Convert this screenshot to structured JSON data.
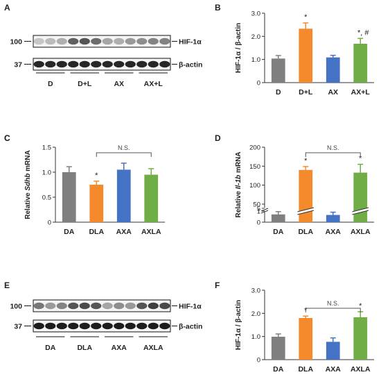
{
  "panels": {
    "A": {
      "label": "A",
      "blots": [
        {
          "name": "HIF-1α",
          "mw": "100"
        },
        {
          "name": "β-actin",
          "mw": "37"
        }
      ],
      "groups": [
        "D",
        "D+L",
        "AX",
        "AX+L"
      ]
    },
    "C": {
      "label": "C"
    },
    "E": {
      "label": "E",
      "blots": [
        {
          "name": "HIF-1α",
          "mw": "100"
        },
        {
          "name": "β-actin",
          "mw": "37"
        }
      ],
      "groups": [
        "DA",
        "DLA",
        "AXA",
        "AXLA"
      ]
    }
  },
  "chart_data": [
    {
      "panel": "B",
      "type": "bar",
      "categories": [
        "D",
        "D+L",
        "AX",
        "AX+L"
      ],
      "values": [
        1.04,
        2.33,
        1.09,
        1.68
      ],
      "errors": [
        0.13,
        0.25,
        0.09,
        0.23
      ],
      "colors": [
        "#7f7f7f",
        "#f58a2c",
        "#4472c4",
        "#70ad47"
      ],
      "annotations": [
        "",
        "*",
        "",
        "*, #"
      ],
      "ylabel": "HIF-1α / β-actin",
      "ylim": [
        0,
        3.0
      ],
      "yticks": [
        "0",
        "1.0",
        "2.0",
        "3.0"
      ]
    },
    {
      "panel": "D",
      "type": "bar",
      "categories": [
        "DA",
        "DLA",
        "AXA",
        "AXLA"
      ],
      "values": [
        0.7,
        140,
        0.65,
        133
      ],
      "errors": [
        0.25,
        9,
        0.25,
        22
      ],
      "colors": [
        "#7f7f7f",
        "#f58a2c",
        "#4472c4",
        "#70ad47"
      ],
      "annotations": [
        "",
        "*",
        "",
        "*"
      ],
      "comparison": {
        "from": "DLA",
        "to": "AXLA",
        "label": "N.S."
      },
      "ylabel_parts": [
        "Relative ",
        "Il-1b",
        " mRNA"
      ],
      "ylim": [
        0,
        200
      ],
      "axis_break": [
        1,
        50
      ],
      "yticks": [
        "0",
        "1",
        "5",
        "50",
        "100",
        "150",
        "200"
      ]
    },
    {
      "panel": "C",
      "type": "bar",
      "categories": [
        "DA",
        "DLA",
        "AXA",
        "AXLA"
      ],
      "values": [
        1.0,
        0.75,
        1.05,
        0.95
      ],
      "errors": [
        0.11,
        0.07,
        0.13,
        0.12
      ],
      "colors": [
        "#7f7f7f",
        "#f58a2c",
        "#4472c4",
        "#70ad47"
      ],
      "annotations": [
        "",
        "*",
        "",
        ""
      ],
      "comparison": {
        "from": "DLA",
        "to": "AXLA",
        "label": "N.S."
      },
      "ylabel_parts": [
        "Relative ",
        "Sdhb",
        " mRNA"
      ],
      "ylim": [
        0,
        1.5
      ],
      "yticks": [
        "0",
        "0.5",
        "1.0",
        "1.5"
      ]
    },
    {
      "panel": "F",
      "type": "bar",
      "categories": [
        "DA",
        "DLA",
        "AXA",
        "AXLA"
      ],
      "values": [
        0.99,
        1.8,
        0.77,
        1.83
      ],
      "errors": [
        0.12,
        0.08,
        0.17,
        0.24
      ],
      "colors": [
        "#7f7f7f",
        "#f58a2c",
        "#4472c4",
        "#70ad47"
      ],
      "annotations": [
        "",
        "*",
        "",
        "*"
      ],
      "comparison": {
        "from": "DLA",
        "to": "AXLA",
        "label": "N.S."
      },
      "ylabel": "HIF-1α / β-actin",
      "ylim": [
        0,
        3.0
      ],
      "yticks": [
        "0",
        "1.0",
        "2.0",
        "3.0"
      ]
    }
  ]
}
